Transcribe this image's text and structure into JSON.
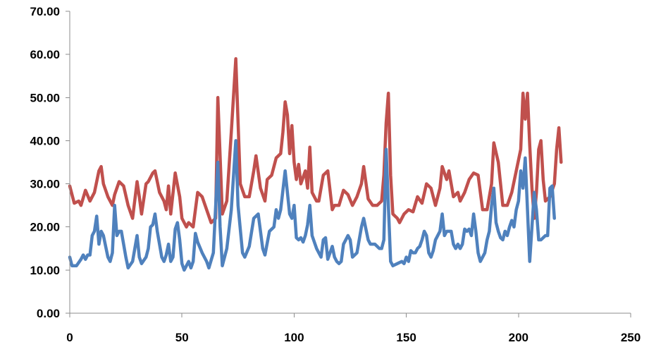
{
  "chart_data": {
    "type": "line",
    "title": "",
    "xlabel": "",
    "ylabel": "",
    "xlim": [
      0,
      250
    ],
    "ylim": [
      0,
      70
    ],
    "x_ticks": [
      "0",
      "50",
      "100",
      "150",
      "200",
      "250"
    ],
    "y_ticks": [
      "0.00",
      "10.00",
      "20.00",
      "30.00",
      "40.00",
      "50.00",
      "60.00",
      "70.00"
    ],
    "grid": false,
    "legend": "none",
    "series": [
      {
        "color": "#c0504d",
        "points": [
          [
            0,
            29.5
          ],
          [
            2,
            25.5
          ],
          [
            4,
            26
          ],
          [
            5,
            25
          ],
          [
            7,
            28.5
          ],
          [
            9,
            26
          ],
          [
            11,
            28
          ],
          [
            13,
            33
          ],
          [
            14,
            34
          ],
          [
            15,
            30
          ],
          [
            17,
            27
          ],
          [
            19,
            25
          ],
          [
            20,
            27.5
          ],
          [
            22,
            30.5
          ],
          [
            24,
            29.5
          ],
          [
            26,
            25
          ],
          [
            28,
            22
          ],
          [
            30,
            30.5
          ],
          [
            31,
            27
          ],
          [
            32,
            23
          ],
          [
            34,
            30
          ],
          [
            35,
            30.5
          ],
          [
            37,
            32.5
          ],
          [
            38,
            33
          ],
          [
            40,
            28
          ],
          [
            42,
            26
          ],
          [
            43,
            24
          ],
          [
            44,
            29.5
          ],
          [
            45,
            23
          ],
          [
            47,
            32.5
          ],
          [
            49,
            27
          ],
          [
            50,
            22
          ],
          [
            52,
            20
          ],
          [
            53,
            21
          ],
          [
            55,
            20
          ],
          [
            57,
            28
          ],
          [
            59,
            27
          ],
          [
            61,
            24
          ],
          [
            63,
            21
          ],
          [
            65,
            22
          ],
          [
            66,
            50
          ],
          [
            68,
            23
          ],
          [
            70,
            26
          ],
          [
            72,
            42
          ],
          [
            74,
            59
          ],
          [
            76,
            30
          ],
          [
            78,
            27
          ],
          [
            80,
            27
          ],
          [
            82,
            33
          ],
          [
            83,
            36.5
          ],
          [
            85,
            29
          ],
          [
            87,
            26
          ],
          [
            88,
            31
          ],
          [
            90,
            32
          ],
          [
            92,
            36
          ],
          [
            94,
            37
          ],
          [
            95,
            42
          ],
          [
            96,
            49
          ],
          [
            97,
            46
          ],
          [
            98,
            37
          ],
          [
            99,
            43.5
          ],
          [
            100,
            35
          ],
          [
            101,
            31
          ],
          [
            102,
            34.5
          ],
          [
            103,
            30
          ],
          [
            105,
            33
          ],
          [
            106,
            29
          ],
          [
            107,
            38.5
          ],
          [
            108,
            28
          ],
          [
            110,
            26
          ],
          [
            111,
            26
          ],
          [
            113,
            32
          ],
          [
            115,
            33
          ],
          [
            117,
            24
          ],
          [
            118,
            25
          ],
          [
            120,
            25
          ],
          [
            122,
            28.5
          ],
          [
            124,
            27.5
          ],
          [
            126,
            25
          ],
          [
            128,
            27
          ],
          [
            130,
            30
          ],
          [
            131,
            34
          ],
          [
            133,
            26.5
          ],
          [
            135,
            25
          ],
          [
            137,
            25
          ],
          [
            139,
            26
          ],
          [
            140,
            32
          ],
          [
            141,
            44
          ],
          [
            142,
            51
          ],
          [
            143,
            32
          ],
          [
            144,
            23
          ],
          [
            146,
            22
          ],
          [
            147,
            21
          ],
          [
            149,
            23
          ],
          [
            151,
            24
          ],
          [
            153,
            23.5
          ],
          [
            155,
            27
          ],
          [
            157,
            25.5
          ],
          [
            159,
            30
          ],
          [
            161,
            29
          ],
          [
            163,
            25
          ],
          [
            165,
            29
          ],
          [
            166,
            34
          ],
          [
            168,
            31
          ],
          [
            169,
            33
          ],
          [
            171,
            27
          ],
          [
            173,
            28
          ],
          [
            174,
            26
          ],
          [
            176,
            28
          ],
          [
            178,
            31
          ],
          [
            180,
            32.5
          ],
          [
            182,
            32
          ],
          [
            184,
            24
          ],
          [
            186,
            24
          ],
          [
            188,
            30
          ],
          [
            189,
            39.5
          ],
          [
            191,
            35
          ],
          [
            193,
            25
          ],
          [
            195,
            25
          ],
          [
            197,
            28
          ],
          [
            199,
            33
          ],
          [
            201,
            38
          ],
          [
            202,
            51
          ],
          [
            203,
            45
          ],
          [
            204,
            51
          ],
          [
            205,
            39
          ],
          [
            206,
            29
          ],
          [
            207,
            22
          ],
          [
            208,
            28
          ],
          [
            209,
            38
          ],
          [
            210,
            40
          ],
          [
            211,
            31
          ],
          [
            212,
            26
          ],
          [
            214,
            27
          ],
          [
            216,
            30
          ],
          [
            217,
            38
          ],
          [
            218,
            43
          ],
          [
            219,
            35
          ]
        ]
      },
      {
        "color": "#4f81bd",
        "points": [
          [
            0,
            13
          ],
          [
            1,
            11
          ],
          [
            3,
            11
          ],
          [
            5,
            12.5
          ],
          [
            6,
            13.5
          ],
          [
            7,
            12.5
          ],
          [
            8,
            13.5
          ],
          [
            9,
            13.5
          ],
          [
            10,
            18
          ],
          [
            11,
            19
          ],
          [
            12,
            22.5
          ],
          [
            13,
            16
          ],
          [
            14,
            19
          ],
          [
            15,
            18
          ],
          [
            17,
            13
          ],
          [
            18,
            12
          ],
          [
            19,
            14
          ],
          [
            20,
            25
          ],
          [
            21,
            18
          ],
          [
            22,
            19
          ],
          [
            23,
            19
          ],
          [
            25,
            13
          ],
          [
            26,
            10.5
          ],
          [
            28,
            12
          ],
          [
            30,
            18
          ],
          [
            31,
            13
          ],
          [
            32,
            11.5
          ],
          [
            34,
            13
          ],
          [
            35,
            15
          ],
          [
            36,
            20
          ],
          [
            37,
            20.5
          ],
          [
            38,
            23
          ],
          [
            39,
            19
          ],
          [
            41,
            13
          ],
          [
            42,
            12
          ],
          [
            43,
            13.5
          ],
          [
            44,
            16
          ],
          [
            45,
            12
          ],
          [
            46,
            13
          ],
          [
            47,
            19.5
          ],
          [
            48,
            21
          ],
          [
            49,
            17
          ],
          [
            50,
            11.5
          ],
          [
            51,
            10
          ],
          [
            53,
            12
          ],
          [
            54,
            10.5
          ],
          [
            55,
            12
          ],
          [
            56,
            18.5
          ],
          [
            57,
            16.5
          ],
          [
            59,
            14
          ],
          [
            61,
            12
          ],
          [
            62,
            10.5
          ],
          [
            64,
            14
          ],
          [
            66,
            35
          ],
          [
            67,
            20
          ],
          [
            68,
            11
          ],
          [
            70,
            15
          ],
          [
            72,
            24
          ],
          [
            74,
            40
          ],
          [
            75,
            25
          ],
          [
            77,
            14
          ],
          [
            78,
            13
          ],
          [
            80,
            15.5
          ],
          [
            82,
            22
          ],
          [
            84,
            23
          ],
          [
            85,
            19
          ],
          [
            86,
            15
          ],
          [
            87,
            13.5
          ],
          [
            89,
            19
          ],
          [
            91,
            20
          ],
          [
            92,
            24
          ],
          [
            93,
            22
          ],
          [
            94,
            24
          ],
          [
            96,
            33
          ],
          [
            97,
            28
          ],
          [
            98,
            23
          ],
          [
            99,
            22
          ],
          [
            100,
            25
          ],
          [
            101,
            17.5
          ],
          [
            102,
            17
          ],
          [
            103,
            17.5
          ],
          [
            104,
            16.5
          ],
          [
            105,
            18
          ],
          [
            106,
            20.5
          ],
          [
            107,
            25
          ],
          [
            108,
            18
          ],
          [
            110,
            15
          ],
          [
            112,
            13
          ],
          [
            113,
            17
          ],
          [
            114,
            17.5
          ],
          [
            115,
            12.5
          ],
          [
            116,
            14
          ],
          [
            117,
            15.5
          ],
          [
            118,
            13
          ],
          [
            119,
            12
          ],
          [
            120,
            11.5
          ],
          [
            121,
            12
          ],
          [
            122,
            16
          ],
          [
            124,
            18
          ],
          [
            125,
            17
          ],
          [
            126,
            13
          ],
          [
            128,
            14
          ],
          [
            130,
            20
          ],
          [
            131,
            22
          ],
          [
            133,
            17
          ],
          [
            134,
            16
          ],
          [
            136,
            16
          ],
          [
            138,
            15
          ],
          [
            139,
            15
          ],
          [
            140,
            17
          ],
          [
            141,
            38
          ],
          [
            143,
            12
          ],
          [
            144,
            11
          ],
          [
            146,
            11.5
          ],
          [
            148,
            12
          ],
          [
            149,
            11.5
          ],
          [
            150,
            13
          ],
          [
            151,
            12
          ],
          [
            152,
            14.5
          ],
          [
            153,
            14
          ],
          [
            154,
            14
          ],
          [
            155,
            15
          ],
          [
            156,
            15.5
          ],
          [
            157,
            17
          ],
          [
            158,
            19
          ],
          [
            159,
            18
          ],
          [
            160,
            14
          ],
          [
            161,
            13
          ],
          [
            162,
            14.5
          ],
          [
            163,
            17
          ],
          [
            165,
            19
          ],
          [
            166,
            23
          ],
          [
            167,
            18
          ],
          [
            168,
            19
          ],
          [
            170,
            19
          ],
          [
            171,
            16
          ],
          [
            172,
            15
          ],
          [
            173,
            16
          ],
          [
            174,
            15
          ],
          [
            175,
            16
          ],
          [
            176,
            19.5
          ],
          [
            177,
            19
          ],
          [
            178,
            19.5
          ],
          [
            179,
            18
          ],
          [
            180,
            23
          ],
          [
            181,
            19
          ],
          [
            182,
            14
          ],
          [
            183,
            12
          ],
          [
            185,
            14
          ],
          [
            186,
            17
          ],
          [
            187,
            19
          ],
          [
            188,
            25
          ],
          [
            189,
            29
          ],
          [
            190,
            21
          ],
          [
            191,
            19
          ],
          [
            192,
            17.5
          ],
          [
            193,
            17
          ],
          [
            194,
            19
          ],
          [
            195,
            18
          ],
          [
            196,
            20
          ],
          [
            197,
            21.5
          ],
          [
            198,
            20
          ],
          [
            199,
            24
          ],
          [
            200,
            26
          ],
          [
            201,
            33
          ],
          [
            202,
            29
          ],
          [
            203,
            36
          ],
          [
            204,
            24
          ],
          [
            205,
            12
          ],
          [
            206,
            20
          ],
          [
            207,
            28
          ],
          [
            208,
            24
          ],
          [
            209,
            17
          ],
          [
            210,
            17
          ],
          [
            211,
            17.5
          ],
          [
            212,
            18
          ],
          [
            213,
            18
          ],
          [
            214,
            29
          ],
          [
            215,
            29.5
          ],
          [
            216,
            22
          ]
        ]
      }
    ]
  }
}
